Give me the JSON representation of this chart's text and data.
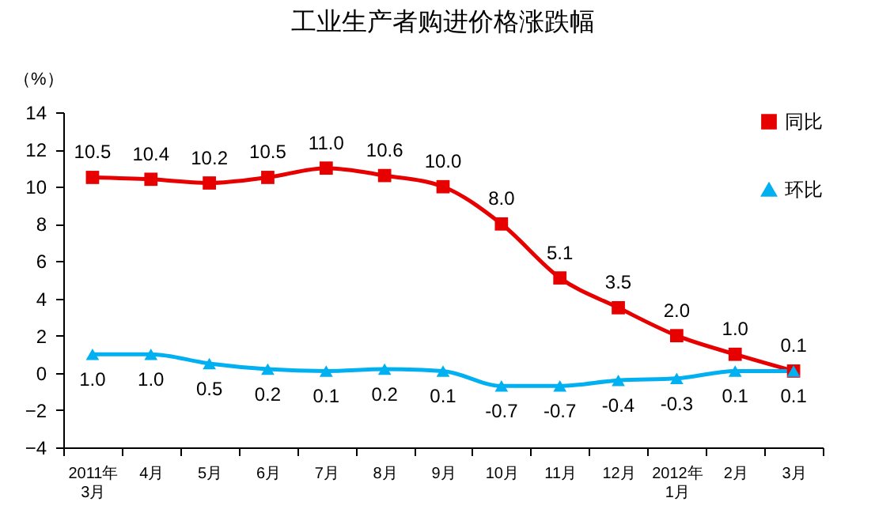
{
  "chart_data": {
    "type": "line",
    "title": "工业生产者购进价格涨跌幅",
    "ylabel": "（%）",
    "categories": [
      "2011年\n3月",
      "4月",
      "5月",
      "6月",
      "7月",
      "8月",
      "9月",
      "10月",
      "11月",
      "12月",
      "2012年\n1月",
      "2月",
      "3月"
    ],
    "series": [
      {
        "name": "同比",
        "color": "#e60000",
        "marker": "square",
        "values": [
          10.5,
          10.4,
          10.2,
          10.5,
          11.0,
          10.6,
          10.0,
          8.0,
          5.1,
          3.5,
          2.0,
          1.0,
          0.1
        ],
        "value_labels": [
          "10.5",
          "10.4",
          "10.2",
          "10.5",
          "11.0",
          "10.6",
          "10.0",
          "8.0",
          "5.1",
          "3.5",
          "2.0",
          "1.0",
          "0.1"
        ]
      },
      {
        "name": "环比",
        "color": "#00b0f0",
        "marker": "triangle",
        "values": [
          1.0,
          1.0,
          0.5,
          0.2,
          0.1,
          0.2,
          0.1,
          -0.7,
          -0.7,
          -0.4,
          -0.3,
          0.1,
          0.1
        ],
        "value_labels": [
          "1.0",
          "1.0",
          "0.5",
          "0.2",
          "0.1",
          "0.2",
          "0.1",
          "-0.7",
          "-0.7",
          "-0.4",
          "-0.3",
          "0.1",
          "0.1"
        ]
      }
    ],
    "ylim": [
      -4,
      14
    ],
    "yticks": [
      -4,
      -2,
      0,
      2,
      4,
      6,
      8,
      10,
      12,
      14
    ],
    "grid": false,
    "legend": "top right"
  }
}
